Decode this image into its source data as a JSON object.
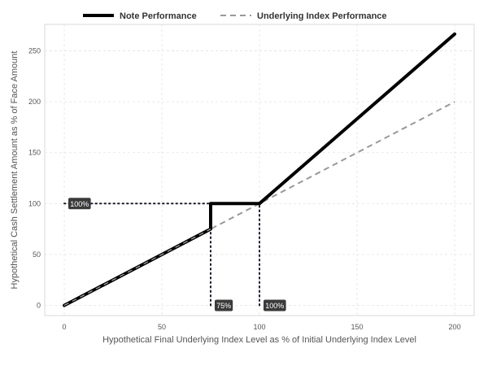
{
  "chart_data": {
    "type": "line",
    "xlabel": "Hypothetical Final Underlying Index Level as % of Initial Underlying Index Level",
    "ylabel": "Hypothetical Cash Settlement Amount as % of Face Amount",
    "xlim": [
      -10,
      210
    ],
    "ylim": [
      -10,
      276
    ],
    "xticks": [
      0,
      50,
      100,
      150,
      200
    ],
    "yticks": [
      0,
      50,
      100,
      150,
      200,
      250
    ],
    "grid": true,
    "legend_position": "top",
    "series": [
      {
        "name": "Note Performance",
        "style": "solid",
        "color": "#000000",
        "x": [
          0,
          75,
          75,
          100,
          200
        ],
        "y": [
          0,
          75,
          100,
          100,
          266.5
        ]
      },
      {
        "name": "Underlying Index Performance",
        "style": "dashed",
        "color": "#999999",
        "x": [
          0,
          200
        ],
        "y": [
          0,
          200
        ]
      }
    ],
    "reference_lines": [
      {
        "x": [
          0,
          75
        ],
        "y": [
          100,
          100
        ]
      },
      {
        "x": [
          75,
          75
        ],
        "y": [
          0,
          100
        ]
      },
      {
        "x": [
          100,
          100
        ],
        "y": [
          0,
          100
        ]
      }
    ],
    "annotations": [
      {
        "text": "100%",
        "x": 0,
        "y": 100
      },
      {
        "text": "75%",
        "x": 75,
        "y": 0
      },
      {
        "text": "100%",
        "x": 100,
        "y": 0
      }
    ]
  }
}
